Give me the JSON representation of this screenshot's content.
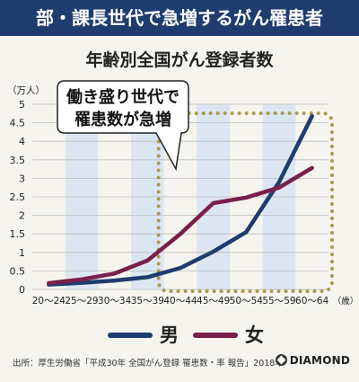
{
  "header": {
    "title": "部・課長世代で急増するがん罹患者"
  },
  "chart_data": {
    "type": "line",
    "title": "年齢別全国がん登録者数",
    "ylabel": "（万人）",
    "xunit": "（歳）",
    "ylim": [
      0,
      5
    ],
    "yticks": [
      "0",
      "0.5",
      "1",
      "1.5",
      "2",
      "2.5",
      "3",
      "3.5",
      "4",
      "4.5",
      "5"
    ],
    "categories": [
      "20〜24",
      "25〜29",
      "30〜34",
      "35〜39",
      "40〜44",
      "45〜49",
      "50〜54",
      "55〜59",
      "60〜64"
    ],
    "shaded_bands": [
      1,
      3,
      5,
      7
    ],
    "series": [
      {
        "name": "男",
        "color": "#1e3c6e",
        "values": [
          0.13,
          0.18,
          0.24,
          0.33,
          0.58,
          1.02,
          1.55,
          2.9,
          4.68
        ]
      },
      {
        "name": "女",
        "color": "#7a1e4b",
        "values": [
          0.17,
          0.27,
          0.43,
          0.78,
          1.5,
          2.33,
          2.48,
          2.75,
          3.28
        ]
      }
    ],
    "callout": {
      "lines": [
        "働き盛り世代で",
        "罹患数が急増"
      ]
    }
  },
  "footer": {
    "source": "出所：厚生労働省「平成30年 全国がん登録 罹患数・率 報告」2018年",
    "logo": "DIAMOND"
  },
  "colors": {
    "banner": "#1e3c6e",
    "band": "#dce6f2",
    "highlight_border": "#a89a4c",
    "male": "#1e3c6e",
    "female": "#7a1e4b"
  }
}
